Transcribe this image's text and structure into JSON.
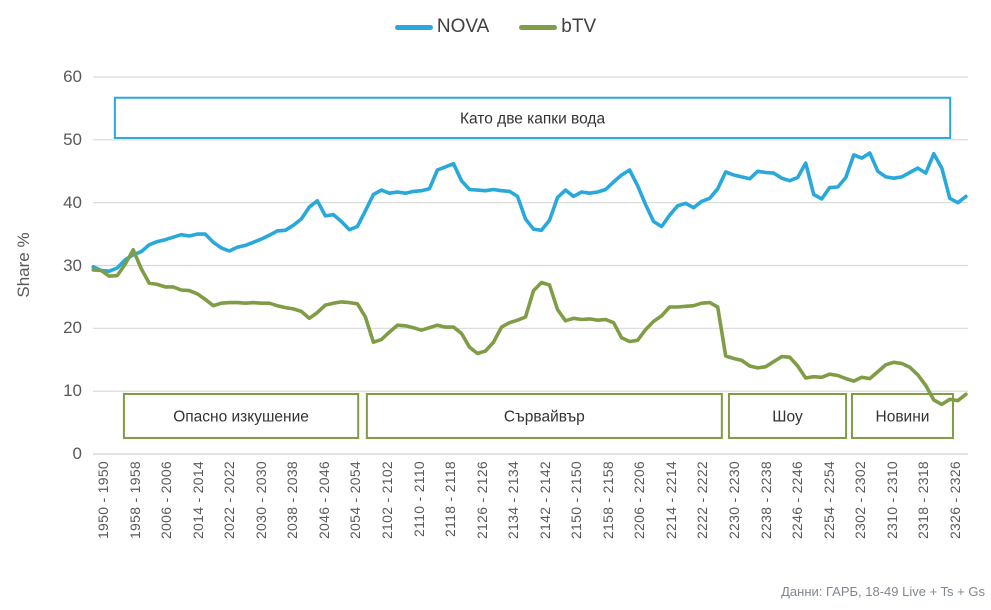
{
  "chart_data": {
    "type": "line",
    "title": "",
    "ylabel": "Share %",
    "ylim": [
      0,
      60
    ],
    "y_ticks": [
      "0",
      "10",
      "20",
      "30",
      "40",
      "50",
      "60"
    ],
    "grid": "horizontal",
    "legend_position": "top-center",
    "x_ticks": [
      "1950 - 1950",
      "1958 - 1958",
      "2006 - 2006",
      "2014 - 2014",
      "2022 - 2022",
      "2030 - 2030",
      "2038 - 2038",
      "2046 - 2046",
      "2054 - 2054",
      "2102 - 2102",
      "2110 - 2110",
      "2118 - 2118",
      "2126 - 2126",
      "2134 - 2134",
      "2142 - 2142",
      "2150 - 2150",
      "2158 - 2158",
      "2206 - 2206",
      "2214 - 2214",
      "2222 - 2222",
      "2230 - 2230",
      "2238 - 2238",
      "2246 - 2246",
      "2254 - 2254",
      "2302 - 2302",
      "2310 - 2310",
      "2318 - 2318",
      "2326 - 2326"
    ],
    "x_tick_interval_min": 8,
    "x_start_min": -3,
    "x_step_min": 2.03,
    "series": [
      {
        "name": "NOVA",
        "color": "#29A8DC",
        "values": [
          29.8,
          29.2,
          29.1,
          29.6,
          30.9,
          31.7,
          32.2,
          33.3,
          33.8,
          34.1,
          34.5,
          34.9,
          34.7,
          35.0,
          35.0,
          33.7,
          32.8,
          32.3,
          32.9,
          33.2,
          33.7,
          34.2,
          34.8,
          35.5,
          35.6,
          36.4,
          37.4,
          39.3,
          40.3,
          37.9,
          38.1,
          37.0,
          35.7,
          36.2,
          38.7,
          41.3,
          42.0,
          41.5,
          41.7,
          41.5,
          41.8,
          41.9,
          42.2,
          45.2,
          45.7,
          46.2,
          43.5,
          42.1,
          42.0,
          41.9,
          42.1,
          41.9,
          41.8,
          41.0,
          37.4,
          35.8,
          35.6,
          37.2,
          40.8,
          42.0,
          41.0,
          41.7,
          41.5,
          41.7,
          42.1,
          43.3,
          44.4,
          45.2,
          42.7,
          39.7,
          37.0,
          36.2,
          38.0,
          39.5,
          39.9,
          39.2,
          40.2,
          40.7,
          42.2,
          44.9,
          44.4,
          44.1,
          43.8,
          45.0,
          44.8,
          44.7,
          43.9,
          43.5,
          44.0,
          46.3,
          41.3,
          40.6,
          42.4,
          42.5,
          44.0,
          47.6,
          47.1,
          47.9,
          45.0,
          44.1,
          43.9,
          44.1,
          44.8,
          45.5,
          44.7,
          47.8,
          45.5,
          40.7,
          40.0,
          41.0
        ]
      },
      {
        "name": "bTV",
        "color": "#7F9D45",
        "values": [
          29.3,
          29.2,
          28.3,
          28.4,
          30.2,
          32.5,
          29.5,
          27.2,
          27.0,
          26.6,
          26.6,
          26.1,
          26.0,
          25.5,
          24.6,
          23.6,
          24.0,
          24.1,
          24.1,
          24.0,
          24.1,
          24.0,
          24.0,
          23.6,
          23.3,
          23.1,
          22.7,
          21.6,
          22.5,
          23.7,
          24.0,
          24.2,
          24.1,
          23.9,
          21.8,
          17.8,
          18.2,
          19.4,
          20.5,
          20.4,
          20.1,
          19.7,
          20.1,
          20.5,
          20.2,
          20.2,
          19.2,
          17.0,
          16.0,
          16.4,
          17.8,
          20.2,
          20.9,
          21.3,
          21.8,
          26.0,
          27.3,
          26.9,
          23.0,
          21.2,
          21.6,
          21.4,
          21.5,
          21.3,
          21.4,
          20.9,
          18.5,
          17.9,
          18.1,
          19.8,
          21.1,
          22.0,
          23.4,
          23.4,
          23.5,
          23.6,
          24.0,
          24.1,
          23.4,
          15.6,
          15.2,
          14.9,
          14.0,
          13.7,
          13.9,
          14.7,
          15.5,
          15.4,
          14.0,
          12.1,
          12.3,
          12.2,
          12.7,
          12.5,
          12.0,
          11.6,
          12.2,
          12.0,
          13.1,
          14.2,
          14.6,
          14.4,
          13.8,
          12.6,
          10.9,
          8.6,
          7.9,
          8.7,
          8.5,
          9.5
        ]
      }
    ],
    "annotations": [
      {
        "label": "Като две капки вода",
        "series": "NOVA",
        "border_color": "#29A8DC",
        "x0_min": 2.5,
        "x1_min": 214.3,
        "v0": 50.3,
        "v1": 56.7
      },
      {
        "label": "Опасно изкушение",
        "series": "bTV",
        "border_color": "#7F9D45",
        "x0_min": 4.8,
        "x1_min": 64.2,
        "v0": 2.55,
        "v1": 9.55
      },
      {
        "label": "Сървайвър",
        "series": "bTV",
        "border_color": "#7F9D45",
        "x0_min": 66.4,
        "x1_min": 156.4,
        "v0": 2.55,
        "v1": 9.55
      },
      {
        "label": "Шоу",
        "series": "bTV",
        "border_color": "#7F9D45",
        "x0_min": 158.2,
        "x1_min": 187.9,
        "v0": 2.55,
        "v1": 9.55
      },
      {
        "label": "Новини",
        "series": "bTV",
        "border_color": "#7F9D45",
        "x0_min": 189.4,
        "x1_min": 215.0,
        "v0": 2.55,
        "v1": 9.55
      }
    ],
    "grid_color": "#D9D9D9",
    "axis_text_color": "#595959",
    "source": "Данни: ГАРБ, 18-49 Live + Ts + Gs"
  }
}
